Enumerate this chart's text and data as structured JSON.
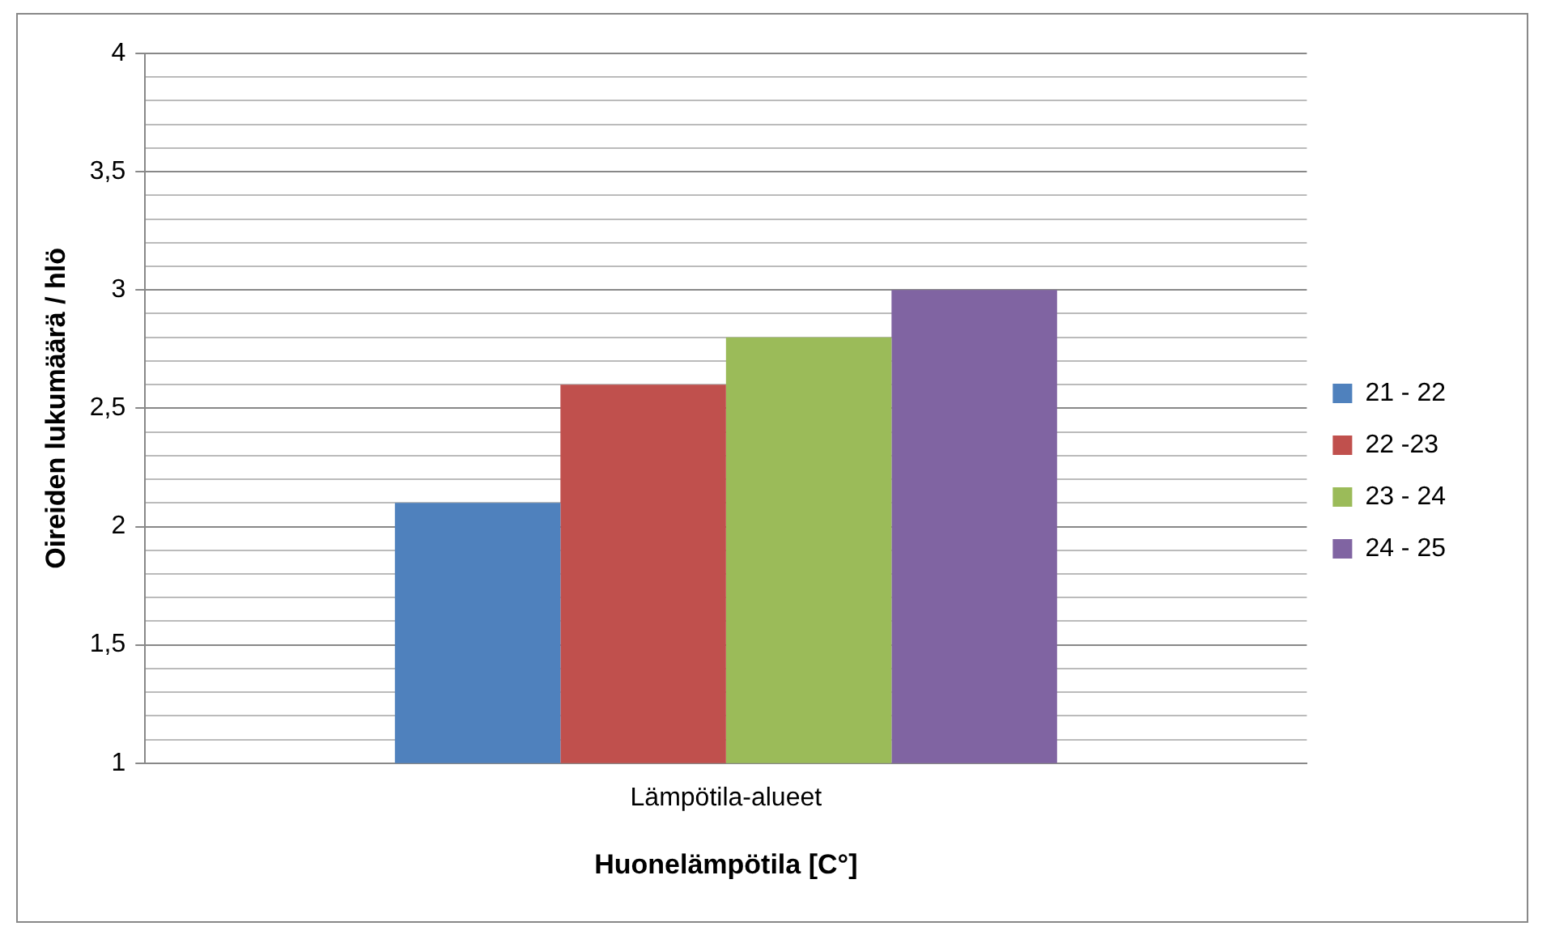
{
  "chart_data": {
    "type": "bar",
    "xlabel": "Huonelämpötila [C°]",
    "ylabel": "Oireiden lukumäärä / hlö",
    "categories": [
      "Lämpötila-alueet"
    ],
    "series": [
      {
        "name": "21 - 22",
        "color": "#4f81bd",
        "values": [
          2.1
        ]
      },
      {
        "name": "22 -23",
        "color": "#c0504d",
        "values": [
          2.6
        ]
      },
      {
        "name": "23 - 24",
        "color": "#9bbb59",
        "values": [
          2.8
        ]
      },
      {
        "name": "24 - 25",
        "color": "#8064a2",
        "values": [
          3.0
        ]
      }
    ],
    "ylim": [
      1,
      4
    ],
    "yticks": [
      {
        "value": 1,
        "label": "1"
      },
      {
        "value": 1.1,
        "label": null
      },
      {
        "value": 1.2,
        "label": null
      },
      {
        "value": 1.3,
        "label": null
      },
      {
        "value": 1.4,
        "label": null
      },
      {
        "value": 1.5,
        "label": "1,5"
      },
      {
        "value": 1.6,
        "label": null
      },
      {
        "value": 1.7,
        "label": null
      },
      {
        "value": 1.8,
        "label": null
      },
      {
        "value": 1.9,
        "label": null
      },
      {
        "value": 2,
        "label": "2"
      },
      {
        "value": 2.1,
        "label": null
      },
      {
        "value": 2.2,
        "label": null
      },
      {
        "value": 2.3,
        "label": null
      },
      {
        "value": 2.4,
        "label": null
      },
      {
        "value": 2.5,
        "label": "2,5"
      },
      {
        "value": 2.6,
        "label": null
      },
      {
        "value": 2.7,
        "label": null
      },
      {
        "value": 2.8,
        "label": null
      },
      {
        "value": 2.9,
        "label": null
      },
      {
        "value": 3,
        "label": "3"
      },
      {
        "value": 3.1,
        "label": null
      },
      {
        "value": 3.2,
        "label": null
      },
      {
        "value": 3.3,
        "label": null
      },
      {
        "value": 3.4,
        "label": null
      },
      {
        "value": 3.5,
        "label": "3,5"
      },
      {
        "value": 3.6,
        "label": null
      },
      {
        "value": 3.7,
        "label": null
      },
      {
        "value": 3.8,
        "label": null
      },
      {
        "value": 3.9,
        "label": null
      },
      {
        "value": 4,
        "label": "4"
      }
    ],
    "grid": "y",
    "legend": "right"
  }
}
